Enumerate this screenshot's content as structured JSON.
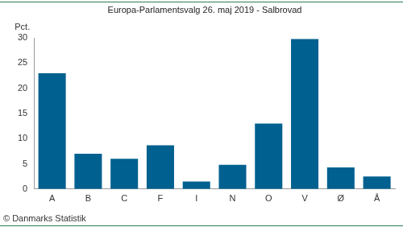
{
  "chart_data": {
    "type": "bar",
    "title": "Europa-Parlamentsvalg 26. maj 2019 - Salbrovad",
    "y_label": "Pct.",
    "annotations": [
      "© Danmarks Statistik"
    ],
    "categories": [
      "A",
      "B",
      "C",
      "F",
      "I",
      "N",
      "O",
      "V",
      "Ø",
      "Å"
    ],
    "values": [
      23,
      7,
      6,
      8.7,
      1.5,
      4.8,
      13,
      29.8,
      4.3,
      2.5
    ],
    "color": "#00608f",
    "ylim": [
      0,
      30
    ],
    "yticks": [
      0,
      5,
      10,
      15,
      20,
      25,
      30
    ],
    "grid": false
  }
}
